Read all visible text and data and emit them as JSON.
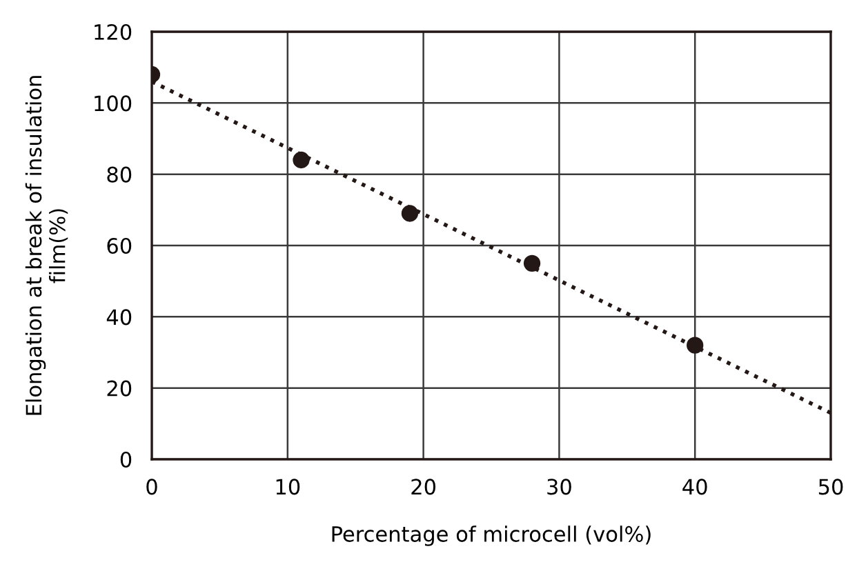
{
  "chart_data": {
    "type": "scatter",
    "xlabel": "Percentage of microcell (vol%)",
    "ylabel": "Elongation at break of insulation\nfilm(%)",
    "xlim": [
      0,
      50
    ],
    "ylim": [
      0,
      120
    ],
    "xticks": [
      0,
      10,
      20,
      30,
      40,
      50
    ],
    "yticks": [
      0,
      20,
      40,
      60,
      80,
      100,
      120
    ],
    "grid": true,
    "series": [
      {
        "marker": "circle",
        "color": "#231815",
        "x": [
          0,
          11,
          19,
          28,
          40
        ],
        "values": [
          108,
          84,
          69,
          55,
          32
        ]
      },
      {
        "type": "line",
        "color": "#231815",
        "line_style": "dotted",
        "marker": "none",
        "x": [
          0,
          50
        ],
        "values": [
          106,
          13
        ]
      }
    ]
  }
}
